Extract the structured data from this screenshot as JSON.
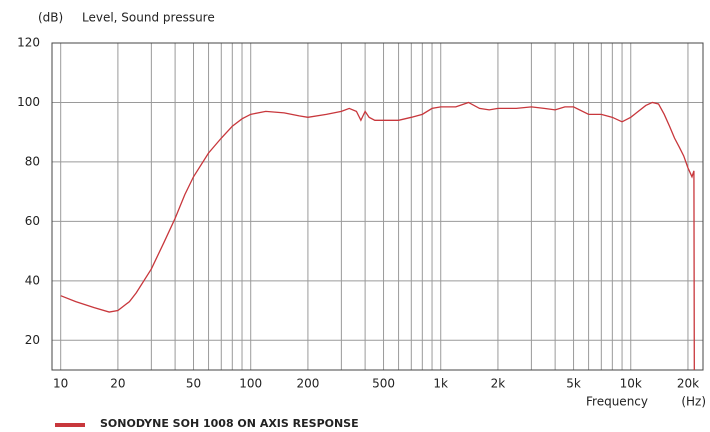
{
  "chart_data": {
    "type": "line",
    "y_unit": "(dB)",
    "ylabel": "Level, Sound pressure",
    "xlabel": "Frequency",
    "x_unit": "(Hz)",
    "xscale": "log",
    "grid": true,
    "xlim": [
      9,
      24000
    ],
    "ylim": [
      10,
      120
    ],
    "yticks": [
      20,
      40,
      60,
      80,
      100,
      120
    ],
    "xticks": [
      10,
      20,
      50,
      100,
      200,
      500,
      {
        "value": 1000,
        "label": "1k"
      },
      {
        "value": 2000,
        "label": "2k"
      },
      {
        "value": 5000,
        "label": "5k"
      },
      {
        "value": 10000,
        "label": "10k"
      },
      {
        "value": 20000,
        "label": "20k"
      }
    ],
    "x_minor_ticks": [
      30,
      40,
      60,
      70,
      80,
      90,
      300,
      400,
      600,
      700,
      800,
      900,
      3000,
      4000,
      6000,
      7000,
      8000,
      9000
    ],
    "series": [
      {
        "name": "SONODYNE SOH 1008 ON AXIS RESPONSE",
        "color": "#c8373c",
        "x": [
          10,
          12,
          15,
          18,
          20,
          23,
          25,
          30,
          35,
          40,
          45,
          50,
          60,
          70,
          80,
          90,
          100,
          120,
          150,
          180,
          200,
          250,
          300,
          330,
          360,
          380,
          400,
          420,
          450,
          500,
          600,
          700,
          800,
          900,
          1000,
          1200,
          1400,
          1600,
          1800,
          2000,
          2500,
          3000,
          3500,
          4000,
          4500,
          5000,
          6000,
          7000,
          8000,
          9000,
          10000,
          12000,
          13000,
          14000,
          15000,
          16000,
          17000,
          18000,
          19000,
          20000,
          21000,
          21500,
          21600
        ],
        "values": [
          35,
          33,
          31,
          29.5,
          30,
          33,
          36,
          44,
          53,
          61,
          69,
          75,
          83,
          88,
          92,
          94.5,
          96,
          97,
          96.5,
          95.5,
          95,
          96,
          97,
          98,
          97,
          94,
          97,
          95,
          94,
          94,
          94,
          95,
          96,
          98,
          98.5,
          98.5,
          100,
          98,
          97.5,
          98,
          98,
          98.5,
          98,
          97.5,
          98.5,
          98.5,
          96,
          96,
          95,
          93.5,
          95,
          99,
          100,
          99.5,
          96,
          92,
          88,
          85,
          82,
          78,
          75,
          77,
          10
        ]
      }
    ]
  }
}
